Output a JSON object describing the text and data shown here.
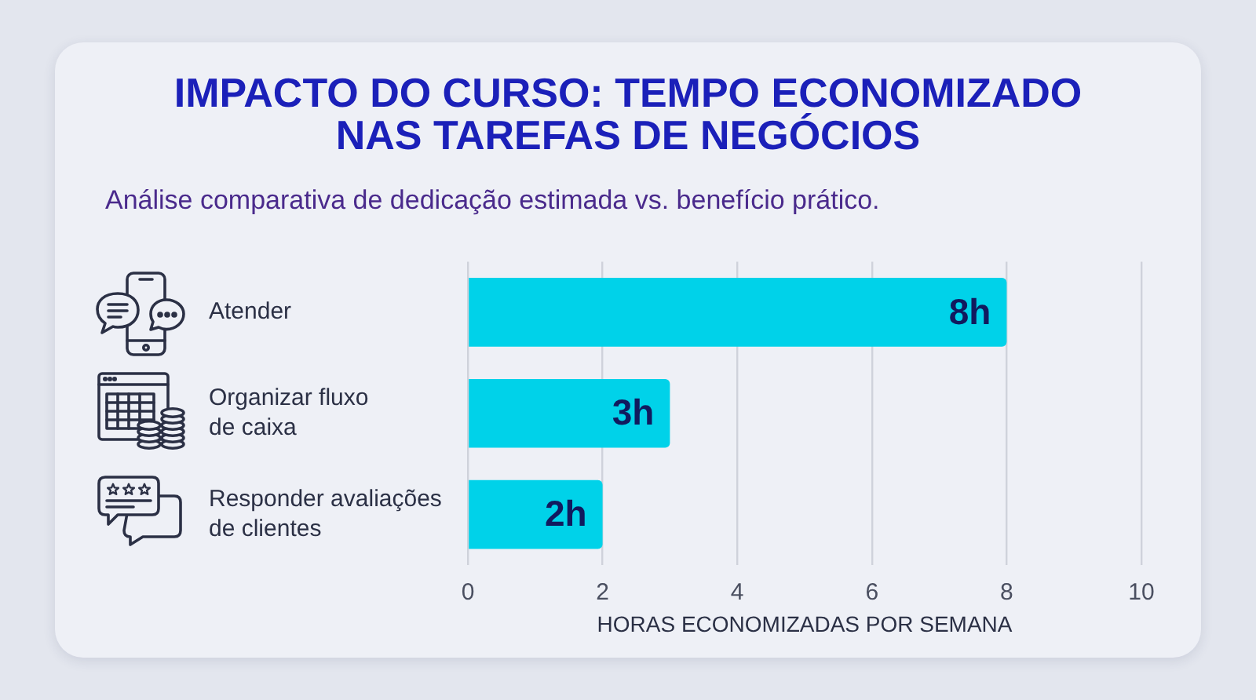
{
  "chart_data": {
    "type": "bar",
    "orientation": "horizontal",
    "title": "IMPACTO DO CURSO: TEMPO ECONOMIZADO NAS TAREFAS DE NEGÓCIOS",
    "subtitle": "Análise comparativa de dedicação estimada vs. benefício prático.",
    "xlabel": "HORAS ECONOMIZADAS POR SEMANA",
    "categories": [
      "Atender",
      "Organizar fluxo de caixa",
      "Responder avaliações de clientes"
    ],
    "values": [
      8,
      3,
      2
    ],
    "value_labels": [
      "8h",
      "3h",
      "2h"
    ],
    "color": "#00d2e9",
    "xlim": [
      0,
      10
    ],
    "xticks": [
      0,
      2,
      4,
      6,
      8,
      10
    ],
    "grid": "x",
    "legend": false
  }
}
